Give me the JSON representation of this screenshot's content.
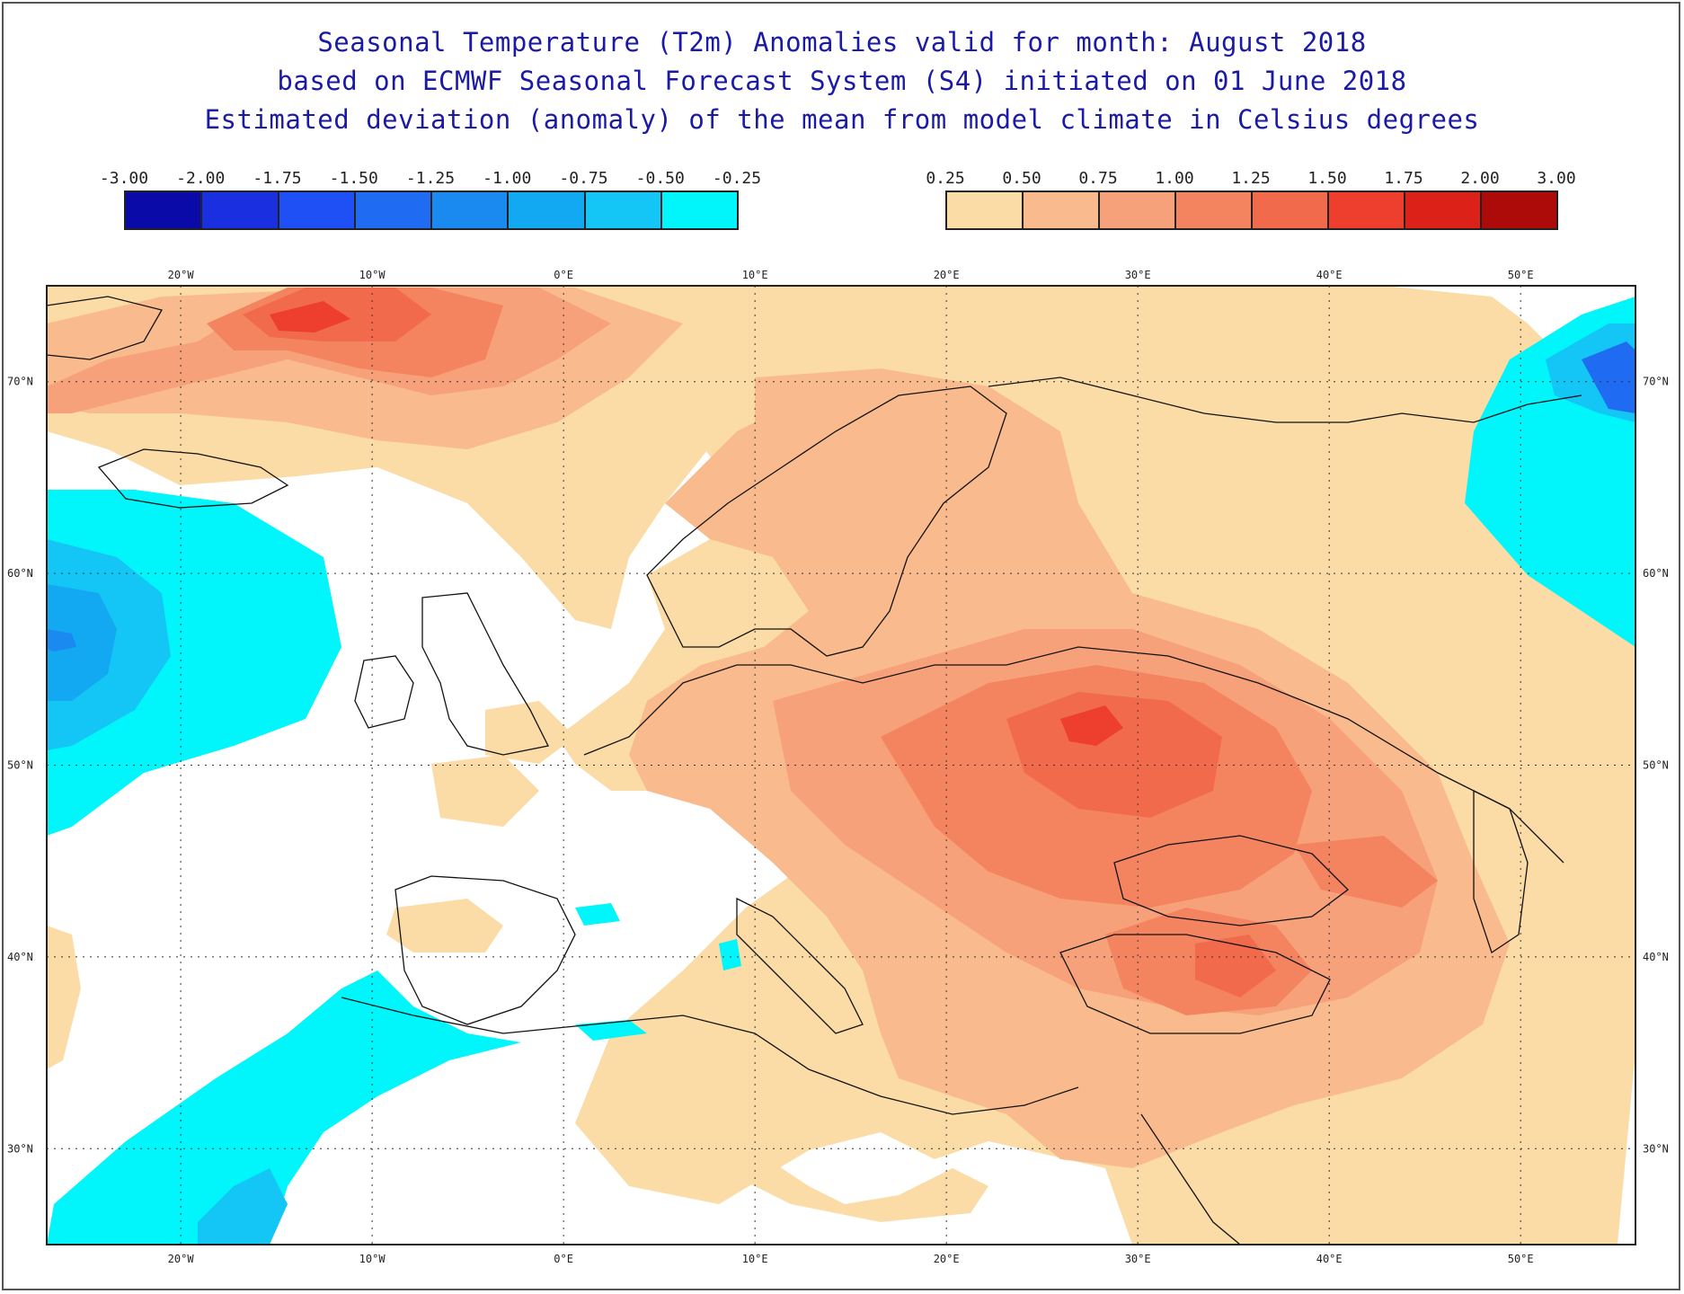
{
  "title": {
    "line1": "Seasonal Temperature (T2m) Anomalies valid for month: August 2018",
    "line2": "based on ECMWF Seasonal Forecast System (S4) initiated on 01 June 2018",
    "line3": "Estimated deviation (anomaly) of the mean from model climate in Celsius degrees"
  },
  "legend": {
    "negative": {
      "labels": [
        "-3.00",
        "-2.00",
        "-1.75",
        "-1.50",
        "-1.25",
        "-1.00",
        "-0.75",
        "-0.50",
        "-0.25"
      ],
      "colors": [
        "#0a0aa8",
        "#1a2fe0",
        "#1e50f5",
        "#1f6cf2",
        "#1a8af0",
        "#12a8f2",
        "#14c6f6",
        "#00f6fa"
      ]
    },
    "positive": {
      "labels": [
        "0.25",
        "0.50",
        "0.75",
        "1.00",
        "1.25",
        "1.50",
        "1.75",
        "2.00",
        "3.00"
      ],
      "colors": [
        "#fbdca6",
        "#f9bb8d",
        "#f7a17a",
        "#f4845f",
        "#f26a4c",
        "#ee3e2e",
        "#dc2218",
        "#ad0a0a"
      ]
    }
  },
  "map": {
    "lon_labels": [
      "20°W",
      "10°W",
      "0°E",
      "10°E",
      "20°E",
      "30°E",
      "40°E",
      "50°E"
    ],
    "lat_labels": [
      "70°N",
      "60°N",
      "50°N",
      "40°N",
      "30°N"
    ],
    "lon_values": [
      -20,
      -10,
      0,
      10,
      20,
      30,
      40,
      50
    ],
    "lat_values": [
      70,
      60,
      50,
      40,
      30
    ],
    "lon_range": [
      -27,
      56
    ],
    "lat_range": [
      25,
      75
    ]
  }
}
